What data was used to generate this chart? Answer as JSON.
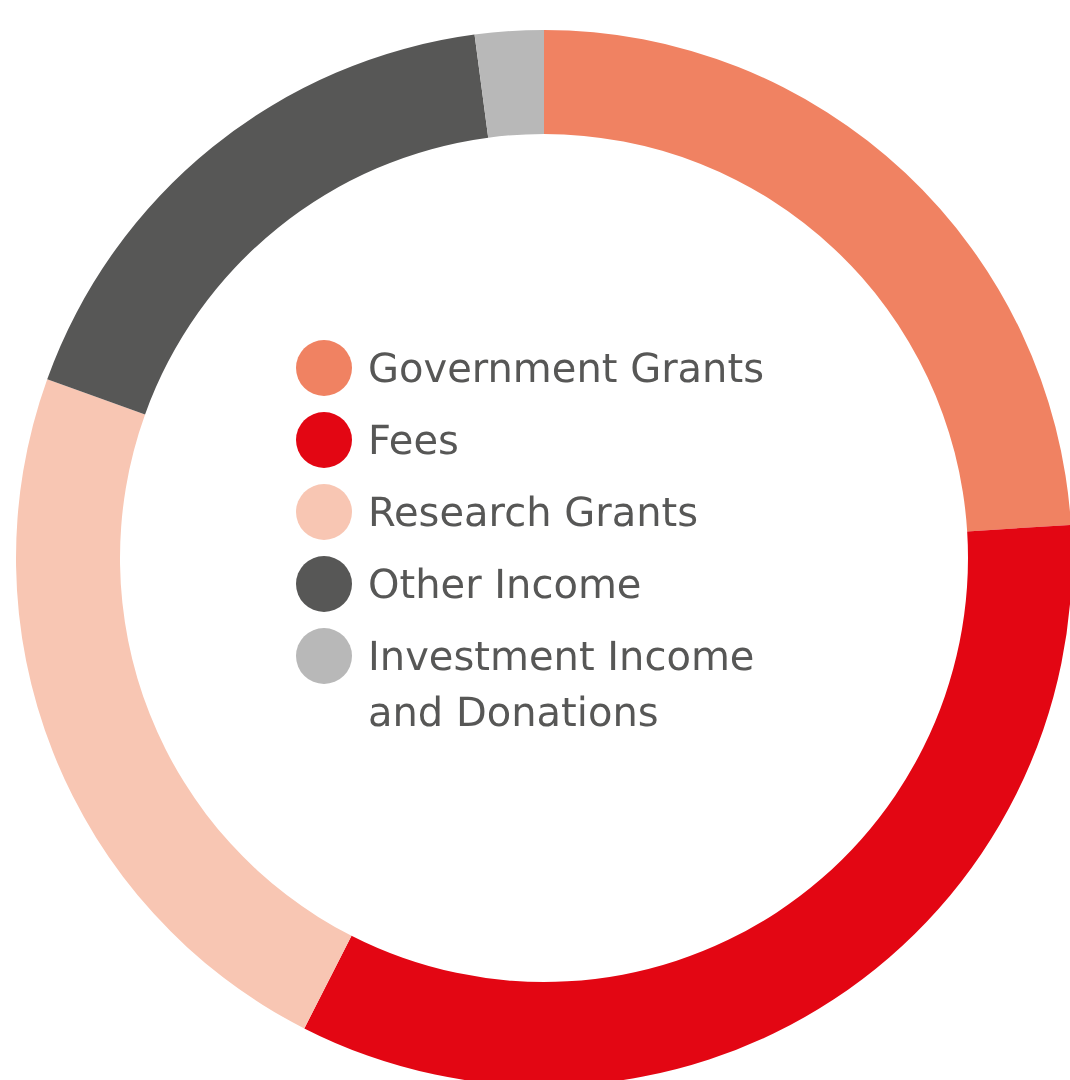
{
  "chart_data": {
    "type": "donut",
    "categories": [
      "Government Grants",
      "Fees",
      "Research Grants",
      "Other Income",
      "Investment Income and Donations"
    ],
    "values": [
      24,
      33.5,
      23,
      17.4,
      2.1
    ],
    "colors": [
      "#f08262",
      "#e30613",
      "#f8c6b3",
      "#575756",
      "#b8b8b8"
    ],
    "legend": "center"
  }
}
